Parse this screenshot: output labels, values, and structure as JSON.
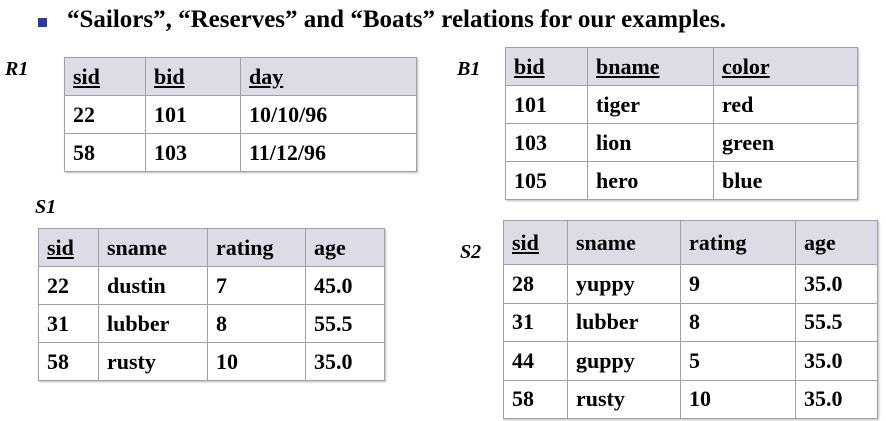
{
  "title": "“Sailors”, “Reserves” and “Boats” relations for our examples.",
  "tables": {
    "R1": {
      "label": "R1",
      "columns": [
        "sid",
        "bid",
        "day"
      ],
      "rows": [
        [
          "22",
          "101",
          "10/10/96"
        ],
        [
          "58",
          "103",
          "11/12/96"
        ]
      ]
    },
    "B1": {
      "label": "B1",
      "columns": [
        "bid",
        "bname",
        "color"
      ],
      "rows": [
        [
          "101",
          "tiger",
          "red"
        ],
        [
          "103",
          "lion",
          "green"
        ],
        [
          "105",
          "hero",
          "blue"
        ]
      ]
    },
    "S1": {
      "label": "S1",
      "columns": [
        "sid",
        "sname",
        "rating",
        "age"
      ],
      "rows": [
        [
          "22",
          "dustin",
          "7",
          "45.0"
        ],
        [
          "31",
          "lubber",
          "8",
          "55.5"
        ],
        [
          "58",
          "rusty",
          "10",
          "35.0"
        ]
      ]
    },
    "S2": {
      "label": "S2",
      "columns": [
        "sid",
        "sname",
        "rating",
        "age"
      ],
      "rows": [
        [
          "28",
          "yuppy",
          "9",
          "35.0"
        ],
        [
          "31",
          "lubber",
          "8",
          "55.5"
        ],
        [
          "44",
          "guppy",
          "5",
          "35.0"
        ],
        [
          "58",
          "rusty",
          "10",
          "35.0"
        ]
      ]
    }
  }
}
